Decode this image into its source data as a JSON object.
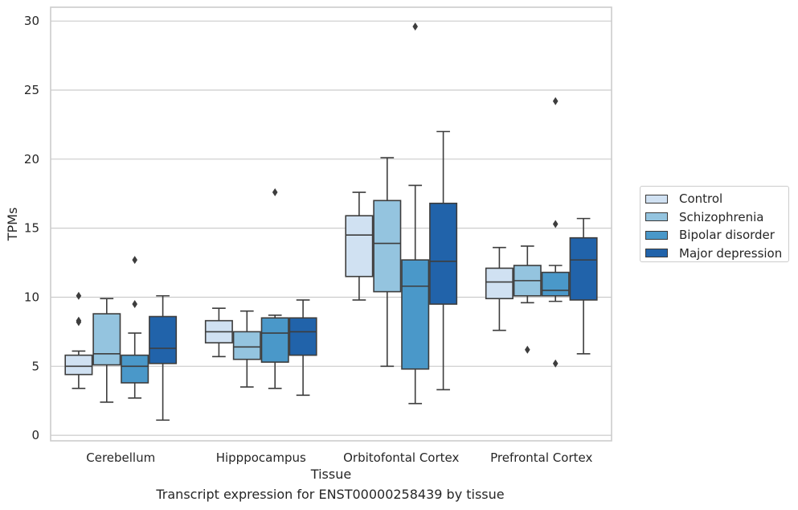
{
  "chart_data": {
    "type": "box",
    "xlabel": "Tissue",
    "ylabel": "TPMs",
    "caption": "Transcript expression for ENST00000258439 by tissue",
    "ylim": [
      -0.4,
      31.0
    ],
    "yticks": [
      0,
      5,
      10,
      15,
      20,
      25,
      30
    ],
    "grid": "horizontal",
    "legend_position": "right",
    "categories": [
      "Cerebellum",
      "Hipppocampus",
      "Orbitofontal Cortex",
      "Prefrontal Cortex"
    ],
    "series": [
      {
        "name": "Control",
        "color": "#d0e1f2",
        "boxes": [
          {
            "whislo": 3.4,
            "q1": 4.4,
            "med": 5.0,
            "q3": 5.8,
            "whishi": 6.1,
            "fliers": [
              10.1,
              8.3,
              8.2
            ]
          },
          {
            "whislo": 5.7,
            "q1": 6.7,
            "med": 7.5,
            "q3": 8.3,
            "whishi": 9.2,
            "fliers": []
          },
          {
            "whislo": 9.8,
            "q1": 11.5,
            "med": 14.5,
            "q3": 15.9,
            "whishi": 17.6,
            "fliers": []
          },
          {
            "whislo": 7.6,
            "q1": 9.9,
            "med": 11.1,
            "q3": 12.1,
            "whishi": 13.6,
            "fliers": []
          }
        ]
      },
      {
        "name": "Schizophrenia",
        "color": "#94c4df",
        "boxes": [
          {
            "whislo": 2.4,
            "q1": 5.1,
            "med": 5.9,
            "q3": 8.8,
            "whishi": 9.9,
            "fliers": []
          },
          {
            "whislo": 3.5,
            "q1": 5.5,
            "med": 6.4,
            "q3": 7.5,
            "whishi": 9.0,
            "fliers": []
          },
          {
            "whislo": 5.0,
            "q1": 10.4,
            "med": 13.9,
            "q3": 17.0,
            "whishi": 20.1,
            "fliers": []
          },
          {
            "whislo": 9.6,
            "q1": 10.1,
            "med": 11.2,
            "q3": 12.3,
            "whishi": 13.7,
            "fliers": [
              6.2
            ]
          }
        ]
      },
      {
        "name": "Bipolar disorder",
        "color": "#4a98c9",
        "boxes": [
          {
            "whislo": 2.7,
            "q1": 3.8,
            "med": 5.0,
            "q3": 5.8,
            "whishi": 7.4,
            "fliers": [
              12.7,
              9.5
            ]
          },
          {
            "whislo": 3.4,
            "q1": 5.3,
            "med": 7.4,
            "q3": 8.5,
            "whishi": 8.7,
            "fliers": [
              17.6
            ]
          },
          {
            "whislo": 2.3,
            "q1": 4.8,
            "med": 10.8,
            "q3": 12.7,
            "whishi": 18.1,
            "fliers": [
              29.6
            ]
          },
          {
            "whislo": 9.7,
            "q1": 10.1,
            "med": 10.5,
            "q3": 11.8,
            "whishi": 12.3,
            "fliers": [
              24.2,
              15.3,
              5.2
            ]
          }
        ]
      },
      {
        "name": "Major depression",
        "color": "#2163aa",
        "boxes": [
          {
            "whislo": 1.1,
            "q1": 5.2,
            "med": 6.3,
            "q3": 8.6,
            "whishi": 10.1,
            "fliers": []
          },
          {
            "whislo": 2.9,
            "q1": 5.8,
            "med": 7.5,
            "q3": 8.5,
            "whishi": 9.8,
            "fliers": []
          },
          {
            "whislo": 3.3,
            "q1": 9.5,
            "med": 12.6,
            "q3": 16.8,
            "whishi": 22.0,
            "fliers": []
          },
          {
            "whislo": 5.9,
            "q1": 9.8,
            "med": 12.7,
            "q3": 14.3,
            "whishi": 15.7,
            "fliers": []
          }
        ]
      }
    ]
  }
}
